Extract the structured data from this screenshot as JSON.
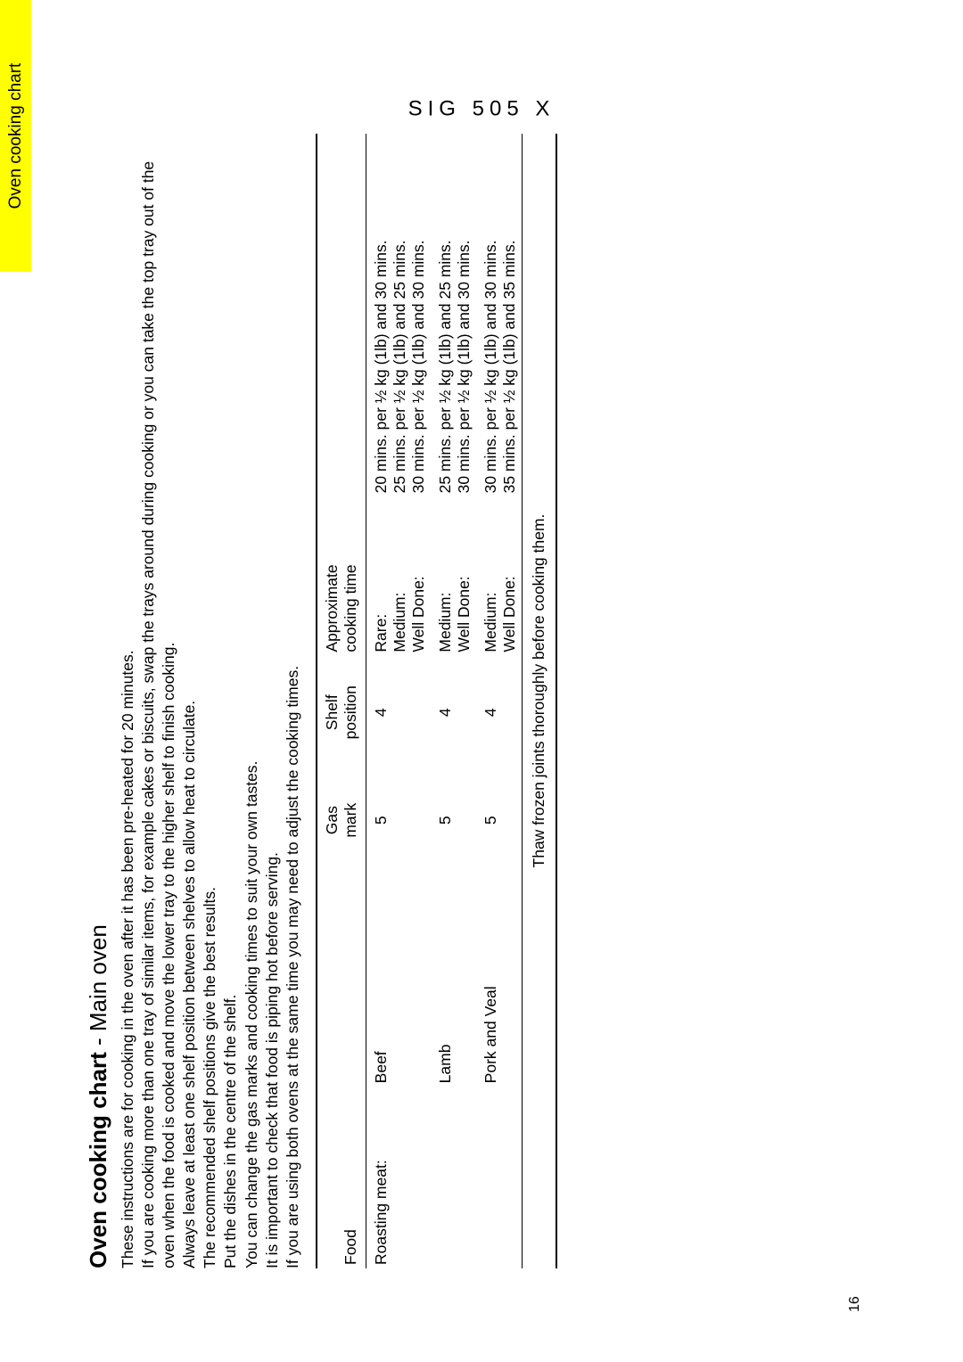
{
  "tab_label": "Oven cooking chart",
  "model_code": "SIG 505 X",
  "page_number": "16",
  "heading_bold": "Oven cooking chart",
  "heading_sub": " - Main oven",
  "intro_lines": [
    "These instructions are for cooking in the oven after it has been pre-heated for 20 minutes.",
    "If you are cooking more than one tray of similar items, for example cakes or biscuits, swap the trays around during cooking or you can take the top tray out of the oven when the food is cooked and move the lower tray to the higher shelf to finish cooking.",
    "Always leave at least one shelf position between shelves to allow heat to circulate.",
    "The recommended shelf positions give the best results.",
    "Put the dishes in the centre of the shelf.",
    "You can change the gas marks and cooking times to suit your own tastes.",
    "It is important to check that food is piping hot before serving.",
    "If you are using both ovens at the same time you may need to adjust the cooking times."
  ],
  "table": {
    "headers": {
      "food": "Food",
      "gas1": "Gas",
      "gas2": "mark",
      "shelf1": "Shelf",
      "shelf2": "position",
      "approx1": "Approximate",
      "approx2": "cooking time"
    },
    "rows": [
      {
        "category": "Roasting meat:",
        "item": "Beef",
        "gas": "5",
        "shelf": "4",
        "doneness": [
          "Rare:",
          "Medium:",
          "Well Done:"
        ],
        "times": [
          "20 mins. per ½ kg (1lb) and 30 mins.",
          "25 mins. per ½ kg (1lb) and 25 mins.",
          "30 mins. per ½ kg (1lb) and 30 mins."
        ]
      },
      {
        "category": "",
        "item": "Lamb",
        "gas": "5",
        "shelf": "4",
        "doneness": [
          "Medium:",
          "Well Done:"
        ],
        "times": [
          "25 mins. per ½ kg (1lb) and 25 mins.",
          "30 mins. per ½ kg (1lb) and 30 mins."
        ]
      },
      {
        "category": "",
        "item": "Pork and Veal",
        "gas": "5",
        "shelf": "4",
        "doneness": [
          "Medium:",
          "Well Done:"
        ],
        "times": [
          "30 mins. per ½ kg (1lb) and 30 mins.",
          "35 mins. per ½ kg (1lb) and 35 mins."
        ]
      }
    ],
    "footer": "Thaw frozen joints thoroughly before cooking them."
  },
  "colors": {
    "tab_bg": "#ffff00",
    "text": "#000000",
    "bg": "#ffffff"
  }
}
